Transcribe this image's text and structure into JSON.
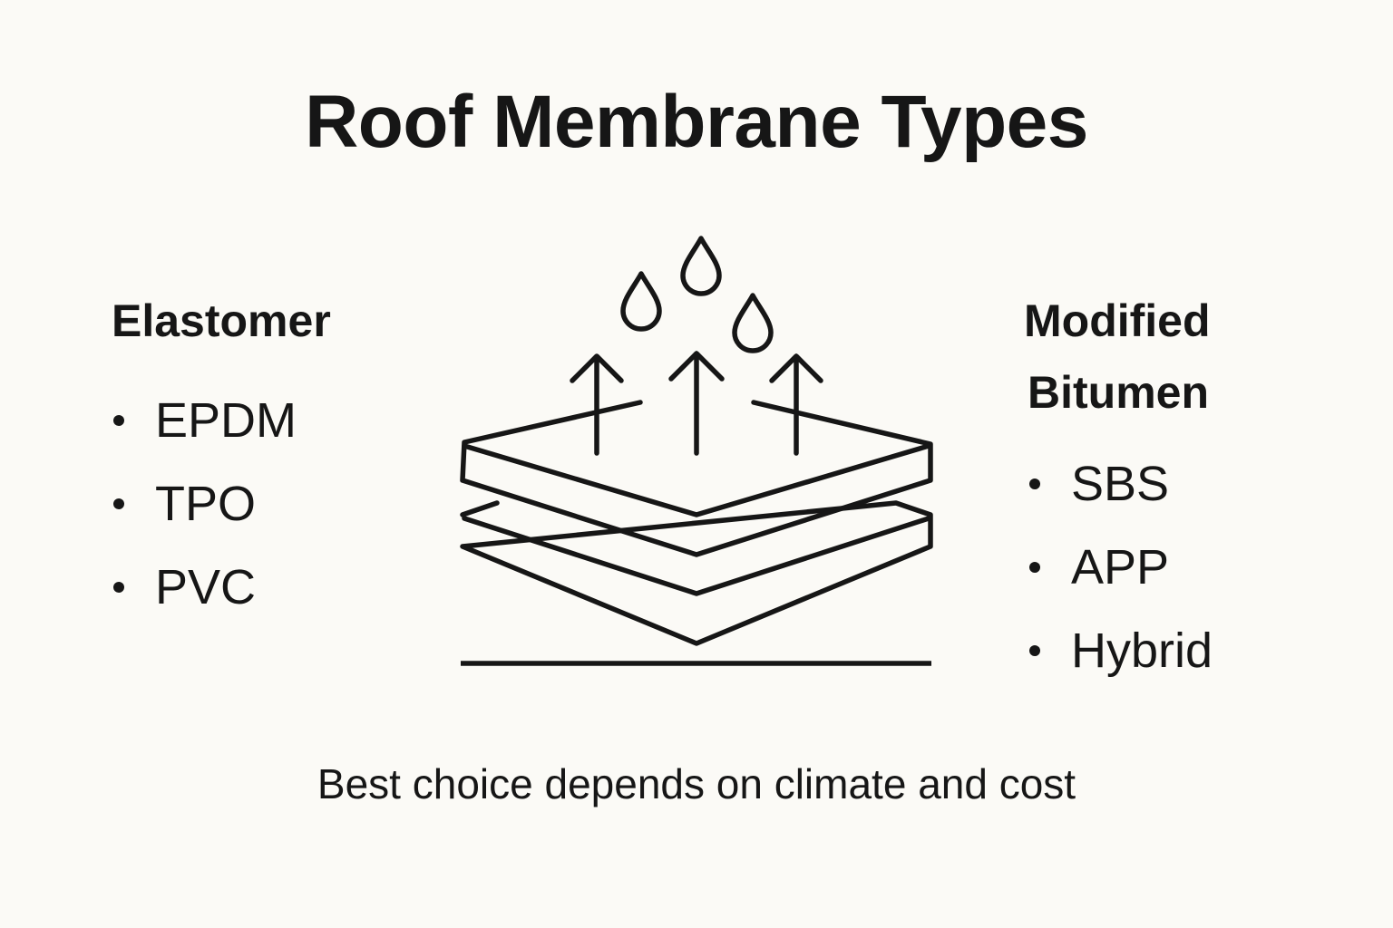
{
  "title": "Roof Membrane Types",
  "left": {
    "heading": "Elastomer",
    "items": [
      "EPDM",
      "TPO",
      "PVC"
    ]
  },
  "right": {
    "heading_line1": "Modified",
    "heading_line2": "Bitumen",
    "items": [
      "SBS",
      "APP",
      "Hybrid"
    ]
  },
  "illustration": {
    "icons": [
      "water-drop-icon",
      "up-arrow-icon",
      "membrane-layers-icon",
      "ground-line"
    ],
    "stroke_color": "#161616"
  },
  "footer": "Best choice depends on climate and cost",
  "colors": {
    "background": "#fbfaf6",
    "ink": "#161616"
  }
}
